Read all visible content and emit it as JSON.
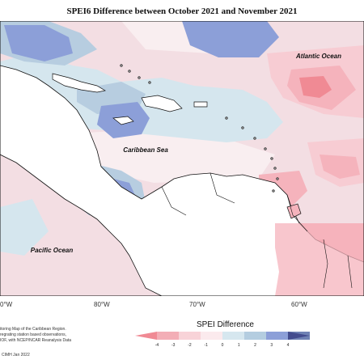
{
  "title": "SPEI6 Difference between October 2021 and November 2021",
  "labels": {
    "atlantic": "Atlantic Ocean",
    "caribbean": "Caribbean Sea",
    "pacific": "Pacific Ocean"
  },
  "longitudes": [
    "0°W",
    "80°W",
    "70°W",
    "60°W"
  ],
  "credit_lines": [
    "itoring Map of the Caribbean Region.",
    "regrating station based observations,",
    "IOF, with NCEP/NCAR Reanalysis Data"
  ],
  "credit_date": "CIMH Jan 2022",
  "legend": {
    "title": "SPEI Difference",
    "ticks": [
      "-4",
      "-3",
      "-2",
      "-1",
      "0",
      "1",
      "2",
      "3",
      "4"
    ],
    "colors": [
      "#f08a94",
      "#f3aeb6",
      "#f8d3d8",
      "#fbeaed",
      "#d6e7ef",
      "#b4cde0",
      "#8c9fd8",
      "#6f82b4",
      "#434c8e"
    ]
  },
  "colors": {
    "land": "#ffffff",
    "coast": "#111111"
  }
}
